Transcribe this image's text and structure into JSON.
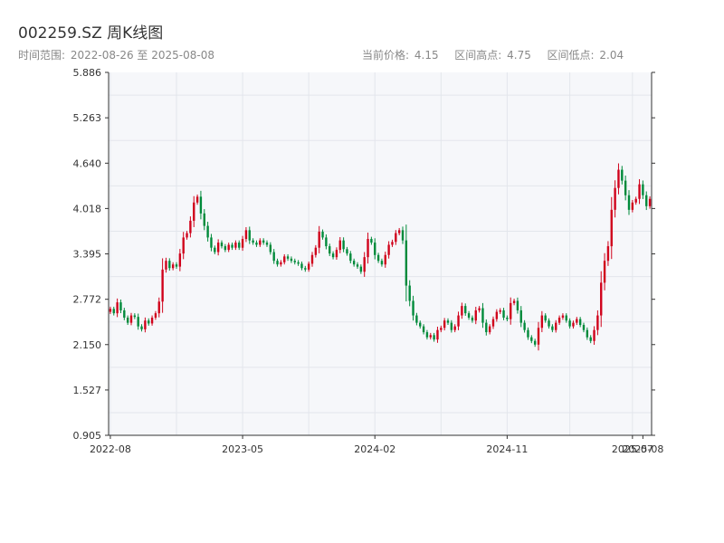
{
  "header": {
    "title": "002259.SZ 周K线图",
    "range_label": "时间范围:",
    "range_value": "2022-08-26 至 2025-08-08",
    "price_label": "当前价格:",
    "price_value": "4.15",
    "high_label": "区间高点:",
    "high_value": "4.75",
    "low_label": "区间低点:",
    "low_value": "2.04"
  },
  "chart_data": {
    "type": "candlestick",
    "x_ticks": [
      "2022-08",
      "2023-05",
      "2024-02",
      "2024-11",
      "2025-07",
      "2025-08"
    ],
    "y_ticks": [
      "5.886",
      "5.263",
      "4.640",
      "4.018",
      "3.395",
      "2.772",
      "2.150",
      "1.527",
      "0.905"
    ],
    "ylim": [
      0.905,
      5.886
    ],
    "up_color": "#d0021b",
    "down_color": "#008a3a",
    "x_tick_index": [
      0,
      38,
      76,
      114,
      150,
      153
    ],
    "closes": [
      2.64,
      2.58,
      2.73,
      2.62,
      2.52,
      2.45,
      2.55,
      2.53,
      2.4,
      2.36,
      2.48,
      2.44,
      2.52,
      2.58,
      2.74,
      3.18,
      3.3,
      3.2,
      3.25,
      3.22,
      3.4,
      3.62,
      3.68,
      3.85,
      4.1,
      4.18,
      3.95,
      3.78,
      3.62,
      3.48,
      3.42,
      3.55,
      3.5,
      3.45,
      3.52,
      3.48,
      3.55,
      3.48,
      3.6,
      3.72,
      3.58,
      3.55,
      3.52,
      3.58,
      3.55,
      3.52,
      3.42,
      3.3,
      3.25,
      3.28,
      3.36,
      3.33,
      3.3,
      3.28,
      3.26,
      3.2,
      3.18,
      3.26,
      3.38,
      3.48,
      3.7,
      3.62,
      3.5,
      3.4,
      3.35,
      3.45,
      3.58,
      3.46,
      3.4,
      3.3,
      3.25,
      3.22,
      3.15,
      3.35,
      3.6,
      3.55,
      3.38,
      3.3,
      3.25,
      3.38,
      3.52,
      3.56,
      3.68,
      3.72,
      3.58,
      2.96,
      2.75,
      2.55,
      2.45,
      2.4,
      2.32,
      2.25,
      2.28,
      2.22,
      2.35,
      2.38,
      2.48,
      2.45,
      2.35,
      2.4,
      2.55,
      2.68,
      2.58,
      2.52,
      2.48,
      2.62,
      2.65,
      2.45,
      2.32,
      2.4,
      2.5,
      2.6,
      2.62,
      2.52,
      2.5,
      2.72,
      2.75,
      2.62,
      2.45,
      2.35,
      2.25,
      2.2,
      2.15,
      2.38,
      2.55,
      2.48,
      2.4,
      2.35,
      2.45,
      2.52,
      2.55,
      2.48,
      2.4,
      2.45,
      2.5,
      2.42,
      2.35,
      2.25,
      2.2,
      2.35,
      2.55,
      3.0,
      3.3,
      3.5,
      4.0,
      4.3,
      4.55,
      4.4,
      4.2,
      4.0,
      4.1,
      4.15,
      4.35,
      4.2,
      4.05,
      4.15
    ]
  }
}
